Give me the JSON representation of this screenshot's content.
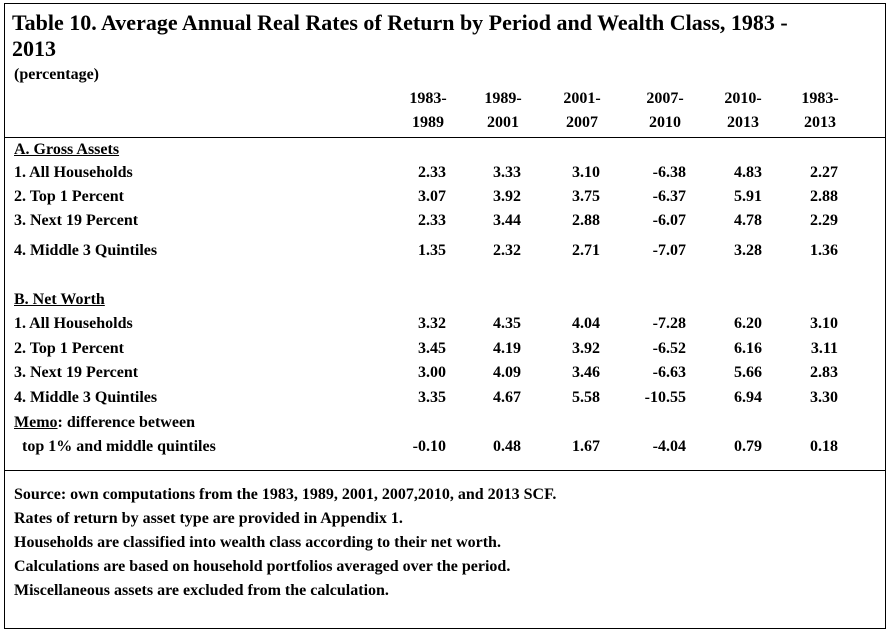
{
  "title_line1": "Table 10. Average Annual Real Rates of Return by Period and Wealth Class, 1983 -",
  "title_line2": "2013",
  "unit": "(percentage)",
  "columns": [
    {
      "top": "1983-",
      "bottom": "1989"
    },
    {
      "top": "1989-",
      "bottom": "2001"
    },
    {
      "top": "2001-",
      "bottom": "2007"
    },
    {
      "top": "2007-",
      "bottom": "2010"
    },
    {
      "top": "2010-",
      "bottom": "2013"
    },
    {
      "top": "1983-",
      "bottom": "2013"
    }
  ],
  "section_a": {
    "heading": "A. Gross Assets",
    "rows": [
      {
        "label": "1. All Households",
        "values": [
          "2.33",
          "3.33",
          "3.10",
          "-6.38",
          "4.83",
          "2.27"
        ]
      },
      {
        "label": "2. Top 1 Percent",
        "values": [
          "3.07",
          "3.92",
          "3.75",
          "-6.37",
          "5.91",
          "2.88"
        ]
      },
      {
        "label": "3. Next 19 Percent",
        "values": [
          "2.33",
          "3.44",
          "2.88",
          "-6.07",
          "4.78",
          "2.29"
        ]
      },
      {
        "label": "4. Middle 3 Quintiles",
        "values": [
          "1.35",
          "2.32",
          "2.71",
          "-7.07",
          "3.28",
          "1.36"
        ]
      }
    ]
  },
  "section_b": {
    "heading": "B. Net Worth",
    "rows": [
      {
        "label": "1. All Households",
        "values": [
          "3.32",
          "4.35",
          "4.04",
          "-7.28",
          "6.20",
          "3.10"
        ]
      },
      {
        "label": "2. Top 1 Percent",
        "values": [
          "3.45",
          "4.19",
          "3.92",
          "-6.52",
          "6.16",
          "3.11"
        ]
      },
      {
        "label": "3. Next 19 Percent",
        "values": [
          "3.00",
          "4.09",
          "3.46",
          "-6.63",
          "5.66",
          "2.83"
        ]
      },
      {
        "label": "4. Middle 3 Quintiles",
        "values": [
          "3.35",
          "4.67",
          "5.58",
          "-10.55",
          "6.94",
          "3.30"
        ]
      }
    ]
  },
  "memo": {
    "word": "Memo",
    "rest": ": difference between",
    "line2": "top 1% and middle quintiles",
    "values": [
      "-0.10",
      "0.48",
      "1.67",
      "-4.04",
      "0.79",
      "0.18"
    ]
  },
  "notes": [
    "Source:  own computations from the 1983, 1989, 2001, 2007,2010, and 2013 SCF.",
    "Rates of return by asset type are provided in Appendix 1.",
    "Households are classified into wealth class according to their net worth.",
    "Calculations are based on household portfolios averaged over the period.",
    "Miscellaneous assets are excluded from the calculation."
  ]
}
